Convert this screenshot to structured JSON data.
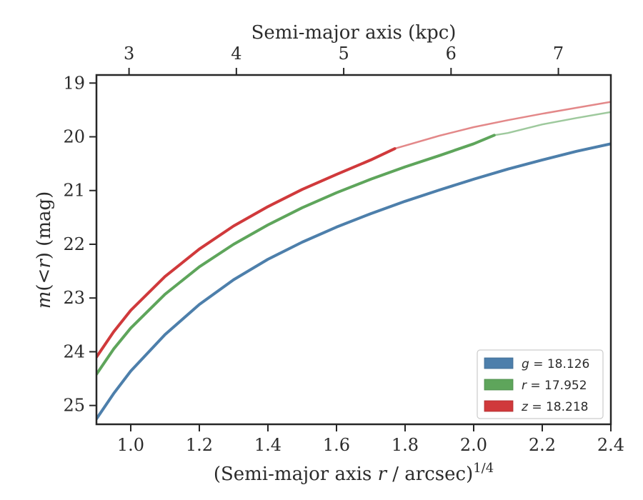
{
  "chart_data": {
    "type": "line",
    "title": "",
    "xlabel": "(Semi-major axis r / arcsec)^1/4",
    "xlabel_parts": {
      "pre": "(Semi-major axis ",
      "var": "r",
      "post": " / arcsec)",
      "sup": "1/4"
    },
    "ylabel": "m(<r) (mag)",
    "ylabel_parts": {
      "var": "m",
      "mid": "(<",
      "var2": "r",
      "post": ") (mag)"
    },
    "top_xlabel": "Semi-major axis (kpc)",
    "xlim": [
      0.9,
      2.4
    ],
    "ylim": [
      25.35,
      18.85
    ],
    "y_inverted": true,
    "x_ticks": [
      "1.0",
      "1.2",
      "1.4",
      "1.6",
      "1.8",
      "2.0",
      "2.2",
      "2.4"
    ],
    "x_tick_values": [
      1.0,
      1.2,
      1.4,
      1.6,
      1.8,
      2.0,
      2.2,
      2.4
    ],
    "y_ticks": [
      "19",
      "20",
      "21",
      "22",
      "23",
      "24",
      "25"
    ],
    "y_tick_values": [
      19,
      20,
      21,
      22,
      23,
      24,
      25
    ],
    "top_ticks": [
      "3",
      "4",
      "5",
      "6",
      "7"
    ],
    "top_tick_positions": [
      0.995,
      1.308,
      1.621,
      1.934,
      2.247
    ],
    "grid": false,
    "legend_position": "bottom-right",
    "series": [
      {
        "name": "g = 18.126",
        "label_var": "g",
        "label_val": "= 18.126",
        "color": "#4d7fab",
        "x": [
          0.9,
          0.95,
          1.0,
          1.1,
          1.2,
          1.3,
          1.4,
          1.5,
          1.6,
          1.7,
          1.8,
          1.9,
          2.0,
          2.1,
          2.2,
          2.3,
          2.4
        ],
        "y": [
          25.25,
          24.78,
          24.36,
          23.68,
          23.12,
          22.66,
          22.28,
          21.96,
          21.68,
          21.43,
          21.2,
          20.99,
          20.79,
          20.6,
          20.43,
          20.27,
          20.13
        ],
        "data_until": 2.4
      },
      {
        "name": "r = 17.952",
        "label_var": "r",
        "label_val": "= 17.952",
        "color": "#5ea55b",
        "x": [
          0.9,
          0.95,
          1.0,
          1.1,
          1.2,
          1.3,
          1.4,
          1.5,
          1.6,
          1.7,
          1.8,
          1.9,
          2.0,
          2.06,
          2.1,
          2.2,
          2.3,
          2.4
        ],
        "y": [
          24.42,
          23.95,
          23.56,
          22.93,
          22.42,
          22.0,
          21.64,
          21.32,
          21.04,
          20.79,
          20.56,
          20.35,
          20.13,
          19.97,
          19.93,
          19.77,
          19.65,
          19.54
        ],
        "data_until": 2.06
      },
      {
        "name": "z = 18.218",
        "label_var": "z",
        "label_val": "= 18.218",
        "color": "#d0393b",
        "x": [
          0.9,
          0.95,
          1.0,
          1.1,
          1.2,
          1.3,
          1.4,
          1.5,
          1.6,
          1.7,
          1.77,
          1.9,
          2.0,
          2.1,
          2.2,
          2.3,
          2.4
        ],
        "y": [
          24.1,
          23.63,
          23.23,
          22.6,
          22.09,
          21.66,
          21.3,
          20.98,
          20.7,
          20.43,
          20.22,
          19.98,
          19.82,
          19.69,
          19.57,
          19.46,
          19.35
        ],
        "data_until": 1.77
      }
    ]
  }
}
